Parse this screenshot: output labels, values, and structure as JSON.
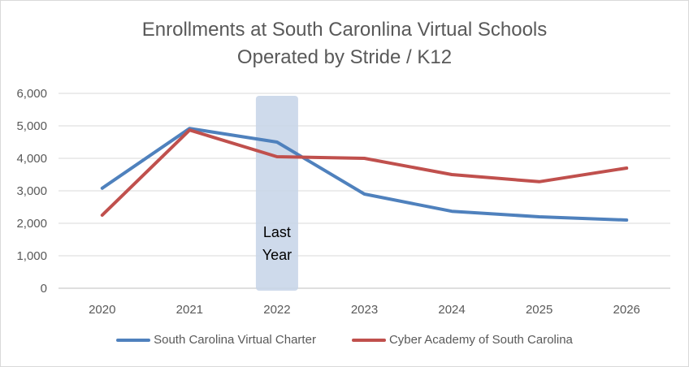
{
  "chart_data": {
    "type": "line",
    "title": "Enrollments at South Caronlina Virtual Schools",
    "subtitle": "Operated by Stride / K12",
    "categories": [
      "2020",
      "2021",
      "2022",
      "2023",
      "2024",
      "2025",
      "2026"
    ],
    "series": [
      {
        "name": "South Carolina Virtual Charter",
        "color": "#4f81bd",
        "values": [
          3080,
          4920,
          4500,
          2900,
          2370,
          2200,
          2100
        ]
      },
      {
        "name": "Cyber Academy of South Carolina",
        "color": "#c0504d",
        "values": [
          2250,
          4870,
          4050,
          4000,
          3500,
          3280,
          3700
        ]
      }
    ],
    "yticks": [
      "0",
      "1,000",
      "2,000",
      "3,000",
      "4,000",
      "5,000",
      "6,000"
    ],
    "ylim": [
      0,
      6000
    ],
    "grid": true,
    "legend_position": "bottom",
    "annotations": [
      {
        "category": "2022",
        "text_line1": "Last",
        "text_line2": "Year",
        "color": "#c5d3e8"
      }
    ],
    "xlabel": "",
    "ylabel": ""
  }
}
